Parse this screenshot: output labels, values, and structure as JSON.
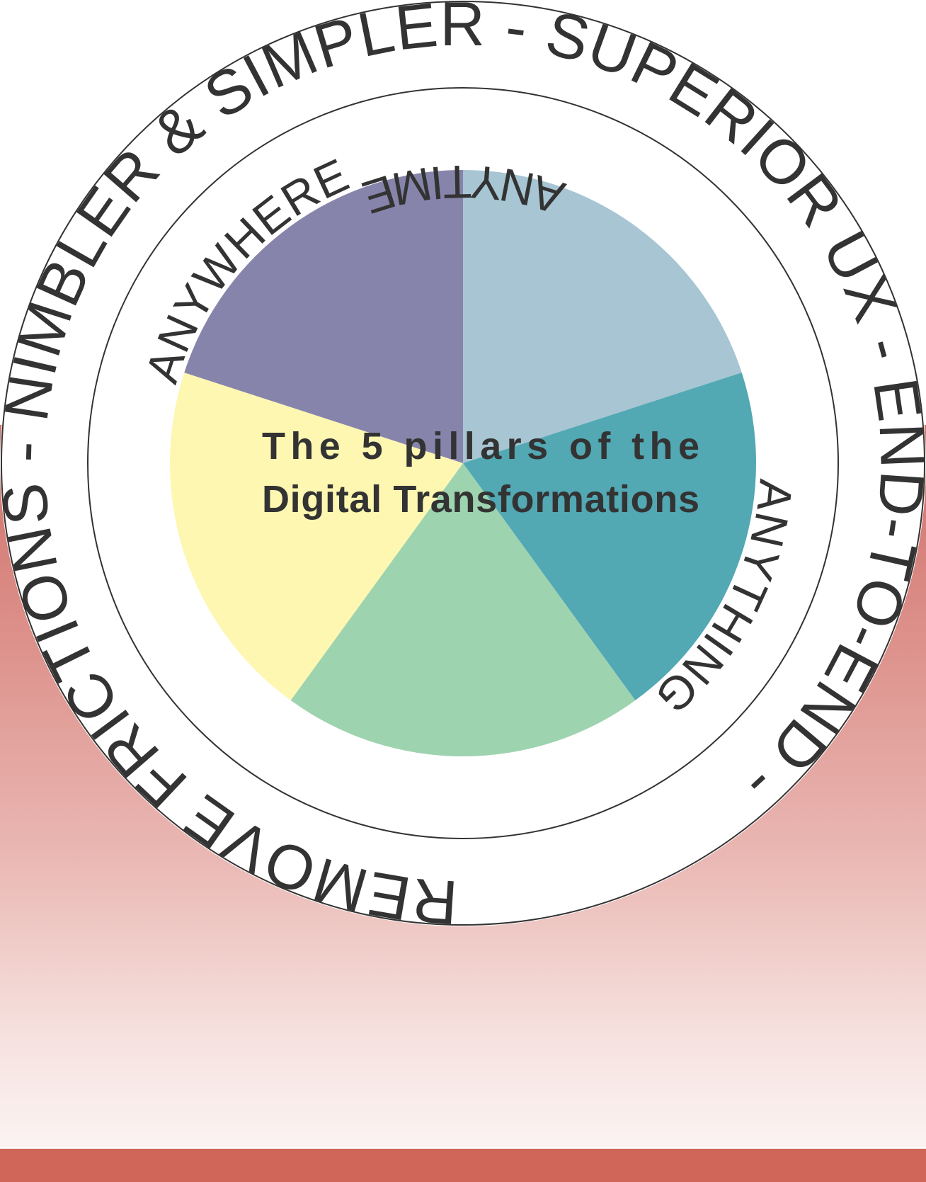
{
  "ring_text": "REMOVE FRICTIONS - NIMBLER & SIMPLER - SUPERIOR UX - END-TO-END -",
  "title_line1": "The 5 pillars of the",
  "title_line2": "Digital Transformations",
  "pillars": [
    {
      "label": "ANYTHING",
      "color": "#a7c5d3"
    },
    {
      "label": "",
      "color": "#52a8b3"
    },
    {
      "label": "ANYTIME",
      "color": "#9ed3af"
    },
    {
      "label": "",
      "color": "#fdf7b1"
    },
    {
      "label": "ANYWHERE",
      "color": "#8784ac"
    }
  ],
  "colors": {
    "backdrop_top": "#d0706a",
    "bottom_bar": "#cf6659",
    "ring_stroke": "#333333",
    "text": "#333333"
  }
}
